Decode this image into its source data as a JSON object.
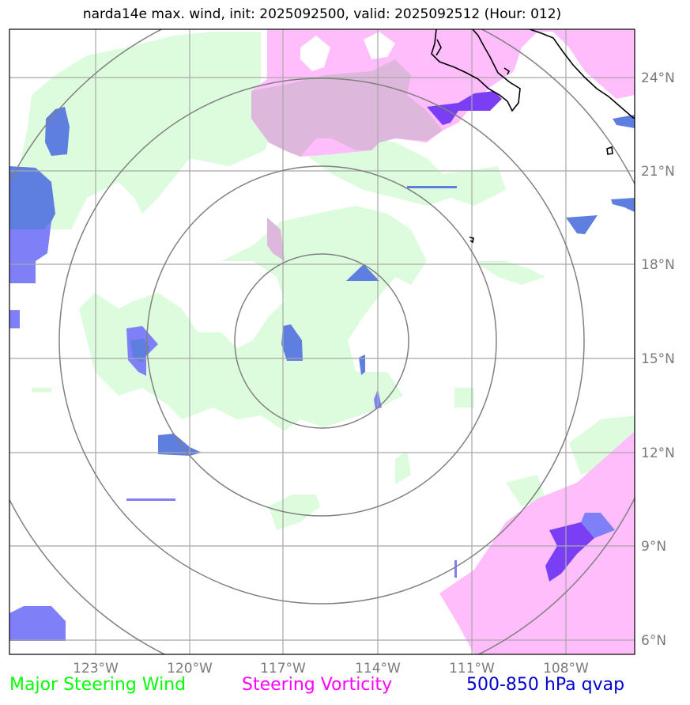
{
  "title": "narda14e max. wind, init: 2025092500, valid: 2025092512 (Hour: 012)",
  "axes": {
    "longitude_labels": [
      "123°W",
      "120°W",
      "117°W",
      "114°W",
      "111°W",
      "108°W"
    ],
    "latitude_labels": [
      "24°N",
      "21°N",
      "18°N",
      "15°N",
      "12°N",
      "9°N",
      "6°N"
    ]
  },
  "legend": {
    "wind": {
      "label": "Major Steering Wind",
      "color": "#00ff00"
    },
    "vorticity": {
      "label": "Steering Vorticity",
      "color": "#ff00ff"
    },
    "qvap": {
      "label": "500-850 hPa qvap",
      "color": "#0000cc"
    }
  },
  "colors": {
    "wind_fill": "#ddfcdd",
    "vorticity_fill": "#ffbdfb",
    "overlap_fill": "#ddb8dc",
    "qvap_light": "#7f7ff8",
    "qvap_mid": "#5f7fe0",
    "qvap_dark": "#7a3ef4",
    "grid": "#a8a8a8",
    "range_rings": "#808080",
    "coastline": "#000000"
  }
}
